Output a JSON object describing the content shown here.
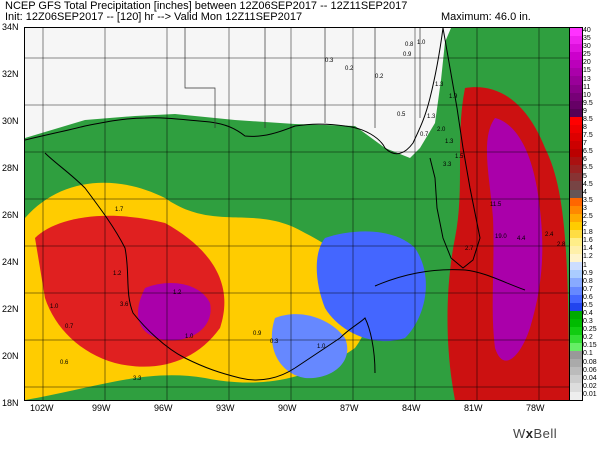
{
  "header": {
    "title_line": "NCEP GFS Total Precipitation [inches] between 12Z06SEP2017 -- 12Z11SEP2017",
    "subtitle_line": "Init: 12Z06SEP2017 -- [120] hr --> Valid Mon 12Z11SEP2017",
    "maximum": "Maximum: 46.0 in."
  },
  "map": {
    "lat_labels": [
      "34N",
      "32N",
      "30N",
      "28N",
      "26N",
      "24N",
      "22N",
      "20N",
      "18N"
    ],
    "lon_labels": [
      "102W",
      "99W",
      "96W",
      "93W",
      "90W",
      "87W",
      "84W",
      "81W",
      "78W"
    ],
    "value_labels": [
      "0.8",
      "1.0",
      "0.9",
      "0.3",
      "0.2",
      "0.2",
      "1.3",
      "1.9",
      "0.5",
      "1.3",
      "2.0",
      "0.7",
      "1.3",
      "1.5",
      "3.3",
      "11.5",
      "19.0",
      "4.4",
      "2.4",
      "2.8",
      "2.7",
      "1.7",
      "1.2",
      "3.6",
      "1.2",
      "1.0",
      "0.7",
      "0.9",
      "0.3",
      "1.0",
      "3.3",
      "0.6",
      "1.0"
    ],
    "colors": {
      "land_background": "#f6f6f6",
      "coast_lines": "#000000",
      "state_lines": "#333333"
    }
  },
  "colorbar": {
    "ticks": [
      "40",
      "35",
      "30",
      "25",
      "20",
      "15",
      "13",
      "11",
      "10",
      "9.5",
      "9",
      "8.5",
      "8",
      "7.5",
      "7",
      "6.5",
      "6",
      "5.5",
      "5",
      "4.5",
      "4",
      "3.5",
      "3",
      "2.5",
      "2",
      "1.8",
      "1.6",
      "1.4",
      "1.2",
      "1",
      "0.9",
      "0.8",
      "0.7",
      "0.6",
      "0.5",
      "0.4",
      "0.3",
      "0.25",
      "0.2",
      "0.15",
      "0.1",
      "0.08",
      "0.06",
      "0.04",
      "0.02",
      "0.01"
    ],
    "colors": [
      "#ff33ff",
      "#ee22ee",
      "#dd11dd",
      "#cc00cc",
      "#bb00bb",
      "#aa00aa",
      "#990099",
      "#880088",
      "#770077",
      "#660066",
      "#550055",
      "#ff0000",
      "#ee0000",
      "#dd0000",
      "#cc0000",
      "#bb0000",
      "#aa1111",
      "#992222",
      "#883333",
      "#774444",
      "#665555",
      "#ff6600",
      "#ff8800",
      "#ffaa00",
      "#ffcc00",
      "#ffdd44",
      "#ffee88",
      "#fff0aa",
      "#fff4cc",
      "#ccddff",
      "#aaccff",
      "#88aaff",
      "#6688ff",
      "#4466ff",
      "#2244ee",
      "#00aa00",
      "#00bb00",
      "#11cc11",
      "#33dd33",
      "#66ee66",
      "#999999",
      "#aaaaaa",
      "#bbbbbb",
      "#cccccc",
      "#dddddd",
      "#eeeeee"
    ]
  },
  "logo": {
    "text_left": "W",
    "text_x": "x",
    "text_right": "Bell"
  }
}
